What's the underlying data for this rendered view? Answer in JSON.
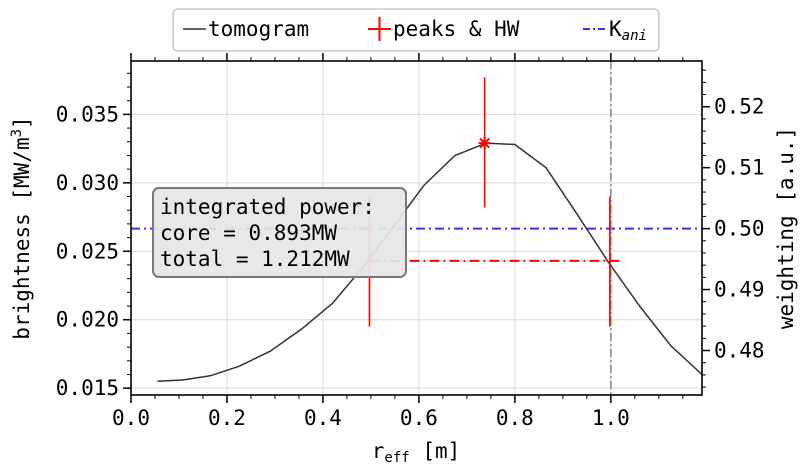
{
  "chart_data": {
    "type": "line",
    "legend": {
      "placement": "top-center",
      "entries": [
        {
          "label": "tomogram",
          "color": "#333333",
          "style": "solid"
        },
        {
          "label": "peaks & HW",
          "color": "#ff0000",
          "style": "errorbar"
        },
        {
          "label": "K",
          "sub": "ani",
          "color": "#3333ff",
          "style": "dashdot"
        }
      ]
    },
    "x_axis": {
      "label": "r",
      "label_sub": "eff",
      "label_suffix": " [m]",
      "range": [
        0.0,
        1.19
      ],
      "ticks": [
        0.0,
        0.2,
        0.4,
        0.6,
        0.8,
        1.0
      ],
      "tick_labels": [
        "0.0",
        "0.2",
        "0.4",
        "0.6",
        "0.8",
        "1.0"
      ]
    },
    "y_axis_left": {
      "label": "brightness [MW/m",
      "label_sup": "3",
      "label_suffix": "]",
      "range": [
        0.0145,
        0.0389
      ],
      "ticks": [
        0.015,
        0.02,
        0.025,
        0.03,
        0.035
      ],
      "tick_labels": [
        "0.015",
        "0.020",
        "0.025",
        "0.030",
        "0.035"
      ]
    },
    "y_axis_right": {
      "label": "weighting [a.u.]",
      "range": [
        0.4727,
        0.5275
      ],
      "ticks": [
        0.48,
        0.49,
        0.5,
        0.51,
        0.52
      ],
      "tick_labels": [
        "0.48",
        "0.49",
        "0.50",
        "0.51",
        "0.52"
      ]
    },
    "grid": true,
    "series": [
      {
        "name": "tomogram",
        "color": "#333333",
        "x": [
          0.055,
          0.11,
          0.165,
          0.225,
          0.29,
          0.355,
          0.42,
          0.48,
          0.545,
          0.61,
          0.675,
          0.74,
          0.8,
          0.865,
          0.93,
          0.995,
          1.06,
          1.125,
          1.19
        ],
        "y": [
          0.0155,
          0.0156,
          0.0159,
          0.0166,
          0.0177,
          0.0193,
          0.0212,
          0.0237,
          0.0267,
          0.0298,
          0.032,
          0.0329,
          0.0328,
          0.0311,
          0.0277,
          0.0242,
          0.021,
          0.0181,
          0.016
        ]
      }
    ],
    "peak": {
      "x": 0.737,
      "y": 0.0329,
      "y_err": [
        0.0282,
        0.0377
      ]
    },
    "half_width": {
      "x_left": 0.497,
      "x_right": 0.998,
      "y": 0.0243,
      "line_x_end": 1.02,
      "err_low": 0.0195,
      "err_high": 0.029
    },
    "k_ani": {
      "weighting": 0.5,
      "color": "#3333ff"
    },
    "vertical_line": {
      "x": 1.0,
      "color": "#888888"
    },
    "annotation": {
      "lines": [
        "integrated power:",
        "core = 0.893MW",
        "total = 1.212MW"
      ]
    }
  }
}
